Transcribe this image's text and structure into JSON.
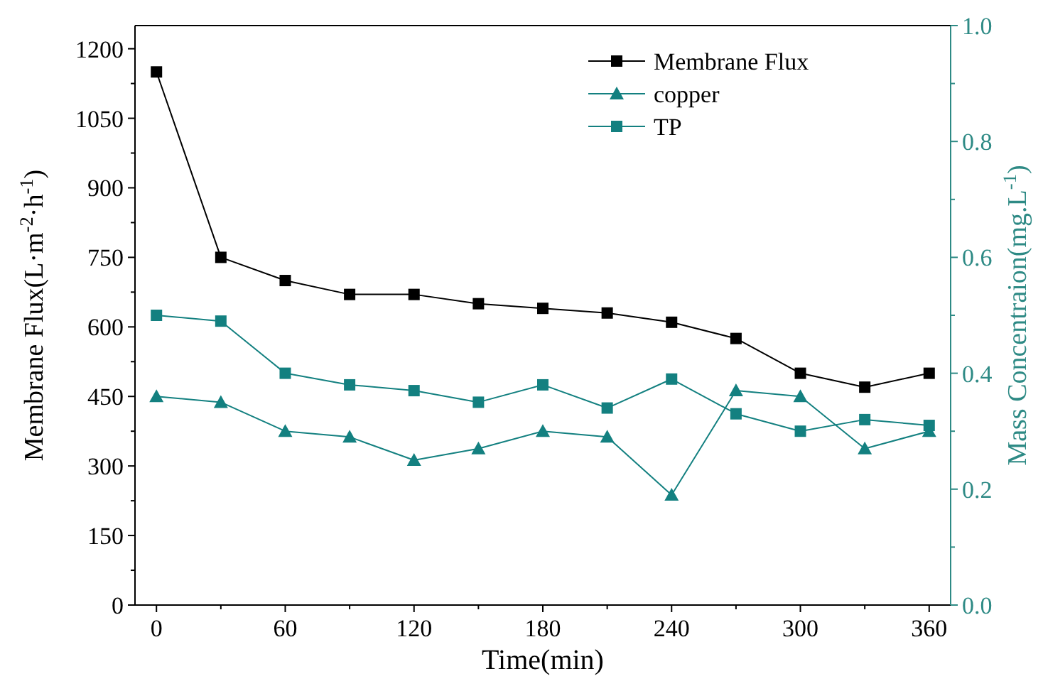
{
  "chart_data": {
    "type": "line",
    "xlabel": "Time(min)",
    "ylabel": "Membrane Flux(L·m$^{-2}$·h$^{-1}$)",
    "y2label": "Mass Concentraion(mg.L$^{-1}$)",
    "x": [
      0,
      30,
      60,
      90,
      120,
      150,
      180,
      210,
      240,
      270,
      300,
      330,
      360
    ],
    "xlim": [
      -10,
      370
    ],
    "xticks": [
      0,
      {
        "value": 30,
        "label": null
      },
      60,
      {
        "value": 90,
        "label": null
      },
      120,
      {
        "value": 150,
        "label": null
      },
      180,
      {
        "value": 210,
        "label": null
      },
      240,
      {
        "value": 270,
        "label": null
      },
      300,
      {
        "value": 330,
        "label": null
      },
      360
    ],
    "ylim": [
      0,
      1250
    ],
    "yticks": [
      0,
      {
        "value": 75,
        "label": null
      },
      150,
      {
        "value": 225,
        "label": null
      },
      300,
      {
        "value": 375,
        "label": null
      },
      450,
      {
        "value": 525,
        "label": null
      },
      600,
      {
        "value": 675,
        "label": null
      },
      750,
      {
        "value": 825,
        "label": null
      },
      900,
      {
        "value": 975,
        "label": null
      },
      1050,
      {
        "value": 1125,
        "label": null
      },
      1200
    ],
    "y2lim": [
      0,
      1
    ],
    "y2ticks": [
      {
        "value": 0,
        "label": "0.0"
      },
      {
        "value": 0.1,
        "label": null
      },
      {
        "value": 0.2,
        "label": "0.2"
      },
      {
        "value": 0.3,
        "label": null
      },
      {
        "value": 0.4,
        "label": "0.4"
      },
      {
        "value": 0.5,
        "label": null
      },
      {
        "value": 0.6,
        "label": "0.6"
      },
      {
        "value": 0.7,
        "label": null
      },
      {
        "value": 0.8,
        "label": "0.8"
      },
      {
        "value": 0.9,
        "label": null
      },
      {
        "value": 1,
        "label": "1.0"
      }
    ],
    "legend": "top right",
    "grid": false,
    "series": [
      {
        "name": "Membrane Flux",
        "color": "#000000",
        "marker": "square",
        "values": [
          1150,
          750,
          700,
          670,
          670,
          650,
          640,
          630,
          610,
          575,
          500,
          470,
          500
        ]
      },
      {
        "name": "copper",
        "color": "#138080",
        "marker": "triangle",
        "axis": "y2",
        "values": [
          0.36,
          0.35,
          0.3,
          0.29,
          0.25,
          0.27,
          0.3,
          0.29,
          0.19,
          0.37,
          0.36,
          0.27,
          0.3
        ]
      },
      {
        "name": "TP",
        "color": "#138080",
        "marker": "square",
        "axis": "y2",
        "values": [
          0.5,
          0.49,
          0.4,
          0.38,
          0.37,
          0.35,
          0.38,
          0.34,
          0.39,
          0.33,
          0.3,
          0.32,
          0.31
        ]
      }
    ]
  }
}
